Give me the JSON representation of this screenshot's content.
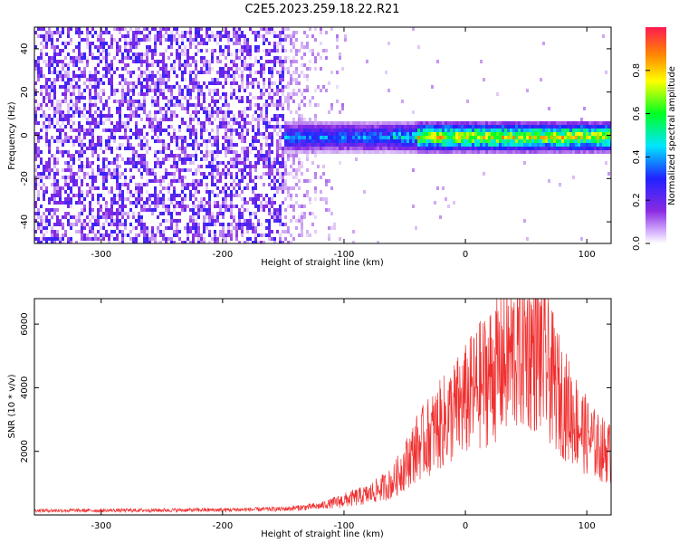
{
  "title": "C2E5.2023.259.18.22.R21",
  "colors": {
    "snr_line": "#f03030",
    "frame": "#000000"
  },
  "chart_data": [
    {
      "type": "heatmap",
      "xlabel": "Height of straight line (km)",
      "ylabel": "Frequency (Hz)",
      "xlim": [
        -355,
        120
      ],
      "ylim": [
        -50,
        50
      ],
      "x_ticks": [
        "-300",
        "-200",
        "-100",
        "0",
        "100"
      ],
      "x_tick_values": [
        -300,
        -200,
        -100,
        0,
        100
      ],
      "y_ticks": [
        "40",
        "20",
        "0",
        "-20",
        "-40"
      ],
      "y_tick_values": [
        40,
        20,
        0,
        -20,
        -40
      ],
      "colorbar": {
        "label": "Normalized spectral amplitude",
        "range": [
          0,
          1
        ],
        "ticks": [
          "0.0",
          "0.2",
          "0.4",
          "0.6",
          "0.8"
        ],
        "tick_values": [
          0.0,
          0.2,
          0.4,
          0.6,
          0.8
        ],
        "colors": [
          "#ffffff",
          "#8a2be2",
          "#2222ff",
          "#00e5ff",
          "#00ff22",
          "#ffff00",
          "#ff8800",
          "#ff1a50"
        ]
      },
      "regions": [
        {
          "name": "diffuse noise",
          "x_range": [
            -355,
            -150
          ],
          "freq_range": [
            -50,
            50
          ],
          "amplitude": 0.1
        },
        {
          "name": "fading noise",
          "x_range": [
            -150,
            -100
          ],
          "freq_range": [
            -50,
            50
          ],
          "amplitude": 0.05
        },
        {
          "name": "signal band",
          "x_range": [
            -150,
            120
          ],
          "freq_center": 0,
          "freq_halfwidth": 5,
          "amplitude_peak": 0.9
        }
      ]
    },
    {
      "type": "line",
      "xlabel": "Height of straight line (km)",
      "ylabel": "SNR (10 * v/v)",
      "xlim": [
        -355,
        120
      ],
      "ylim": [
        0,
        6800
      ],
      "x_ticks": [
        "-300",
        "-200",
        "-100",
        "0",
        "100"
      ],
      "x_tick_values": [
        -300,
        -200,
        -100,
        0,
        100
      ],
      "y_ticks": [
        "6000",
        "4000",
        "2000"
      ],
      "y_tick_values": [
        6000,
        4000,
        2000
      ],
      "series": [
        {
          "x": [
            -355,
            -300,
            -250,
            -200,
            -150,
            -120,
            -100,
            -80,
            -60,
            -40,
            -20,
            0,
            20,
            40,
            50,
            60,
            70,
            80,
            90,
            100,
            110,
            120
          ],
          "y": [
            150,
            150,
            160,
            170,
            200,
            300,
            500,
            700,
            1100,
            2300,
            3100,
            3900,
            4800,
            5500,
            5800,
            5500,
            4800,
            3900,
            3300,
            2700,
            2300,
            2100
          ]
        }
      ]
    }
  ]
}
